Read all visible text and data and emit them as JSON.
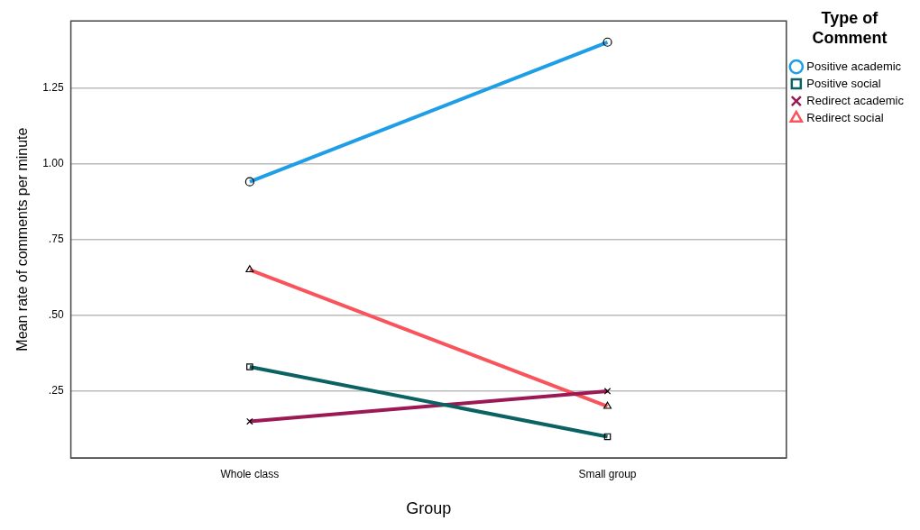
{
  "chart_data": {
    "type": "line",
    "xlabel": "Group",
    "ylabel": "Mean rate of comments per minute",
    "legend_title": "Type of Comment",
    "categories": [
      "Whole class",
      "Small group"
    ],
    "series": [
      {
        "name": "Positive academic",
        "color": "#1f9ee8",
        "values": [
          0.94,
          1.4
        ],
        "marker": "circle"
      },
      {
        "name": "Positive social",
        "color": "#0b6262",
        "values": [
          0.33,
          0.1
        ],
        "marker": "square"
      },
      {
        "name": "Redirect academic",
        "color": "#9b1a55",
        "values": [
          0.15,
          0.25
        ],
        "marker": "cross"
      },
      {
        "name": "Redirect social",
        "color": "#f9535c",
        "values": [
          0.65,
          0.2
        ],
        "marker": "triangle"
      }
    ],
    "ylim": [
      0.03,
      1.47
    ],
    "yticks": [
      {
        "value": 0.25,
        "label": ".25"
      },
      {
        "value": 0.5,
        "label": ".50"
      },
      {
        "value": 0.75,
        "label": ".75"
      },
      {
        "value": 1,
        "label": "1.00"
      },
      {
        "value": 1.25,
        "label": "1.25"
      }
    ],
    "grid": "y",
    "legend": "top right",
    "line_style": "solid"
  }
}
